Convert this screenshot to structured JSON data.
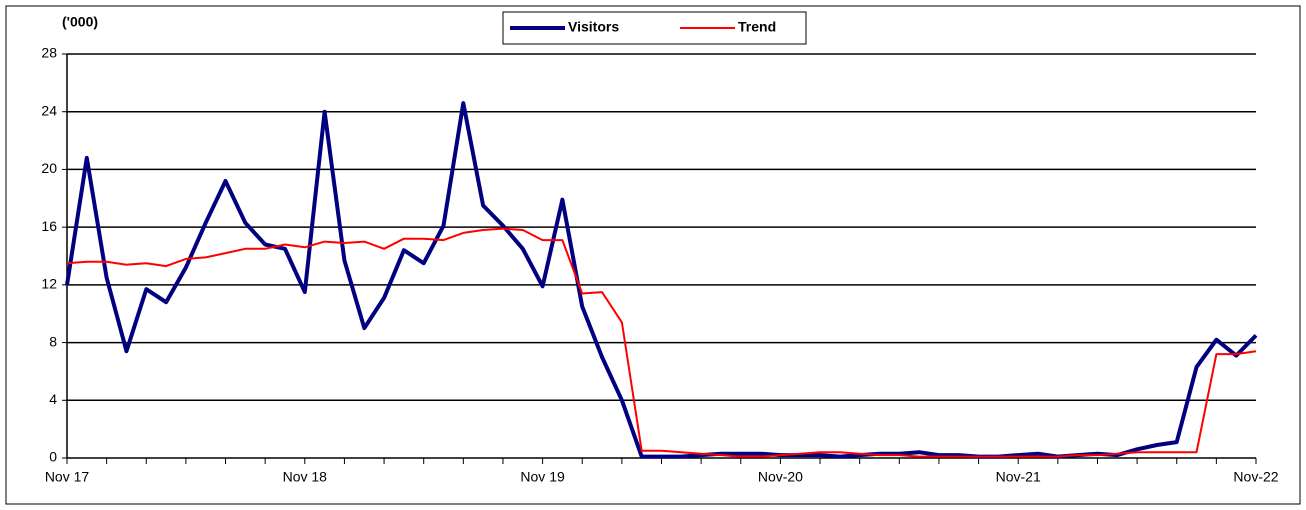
{
  "chart_data": {
    "type": "line",
    "unit_label": "('000)",
    "categories": [
      "Nov 17",
      null,
      null,
      null,
      null,
      null,
      null,
      null,
      null,
      null,
      null,
      null,
      "Nov 18",
      null,
      null,
      null,
      null,
      null,
      null,
      null,
      null,
      null,
      null,
      null,
      "Nov 19",
      null,
      null,
      null,
      null,
      null,
      null,
      null,
      null,
      null,
      null,
      null,
      "Nov-20",
      null,
      null,
      null,
      null,
      null,
      null,
      null,
      null,
      null,
      null,
      null,
      "Nov-21",
      null,
      null,
      null,
      null,
      null,
      null,
      null,
      null,
      null,
      null,
      null,
      "Nov-22"
    ],
    "series": [
      {
        "name": "Visitors",
        "color": "#000080",
        "values": [
          12.0,
          20.8,
          12.5,
          7.4,
          11.7,
          10.8,
          13.2,
          16.3,
          19.2,
          16.3,
          14.8,
          14.5,
          11.5,
          24.0,
          13.7,
          9.0,
          11.1,
          14.4,
          13.5,
          16.1,
          24.6,
          17.5,
          16.1,
          14.5,
          11.9,
          17.9,
          10.5,
          7.0,
          4.0,
          0.1,
          0.1,
          0.1,
          0.2,
          0.3,
          0.3,
          0.3,
          0.2,
          0.2,
          0.2,
          0.1,
          0.2,
          0.3,
          0.3,
          0.4,
          0.2,
          0.2,
          0.1,
          0.1,
          0.2,
          0.3,
          0.1,
          0.2,
          0.3,
          0.2,
          0.6,
          0.9,
          1.1,
          6.3,
          8.2,
          7.1,
          8.5
        ]
      },
      {
        "name": "Trend",
        "color": "#ff0000",
        "values": [
          13.5,
          13.6,
          13.6,
          13.4,
          13.5,
          13.3,
          13.8,
          13.9,
          14.2,
          14.5,
          14.5,
          14.8,
          14.6,
          15.0,
          14.9,
          15.0,
          14.5,
          15.2,
          15.2,
          15.1,
          15.6,
          15.8,
          15.9,
          15.8,
          15.1,
          15.1,
          11.4,
          11.5,
          9.4,
          0.5,
          0.5,
          0.4,
          0.3,
          0.2,
          0.1,
          0.1,
          0.2,
          0.3,
          0.4,
          0.4,
          0.3,
          0.2,
          0.2,
          0.1,
          0.1,
          0.1,
          0.1,
          0.1,
          0.1,
          0.1,
          0.1,
          0.2,
          0.2,
          0.3,
          0.4,
          0.4,
          0.4,
          0.4,
          7.2,
          7.2,
          7.4
        ]
      }
    ],
    "ylim": [
      0,
      28
    ],
    "yticks": [
      0,
      4,
      8,
      12,
      16,
      20,
      24,
      28
    ],
    "grid": true,
    "legend": "top"
  }
}
